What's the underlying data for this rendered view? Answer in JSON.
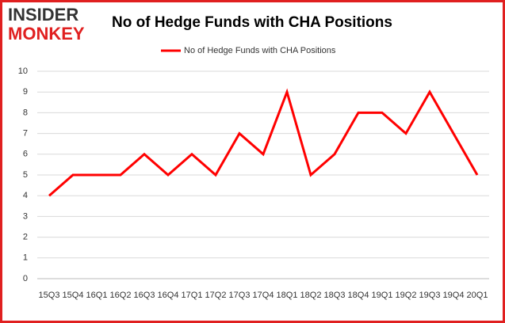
{
  "logo": {
    "line1": "INSIDER",
    "line2": "MONKEY"
  },
  "chart_data": {
    "type": "line",
    "title": "No of Hedge Funds with CHA Positions",
    "categories": [
      "15Q3",
      "15Q4",
      "16Q1",
      "16Q2",
      "16Q3",
      "16Q4",
      "17Q1",
      "17Q2",
      "17Q3",
      "17Q4",
      "18Q1",
      "18Q2",
      "18Q3",
      "18Q4",
      "19Q1",
      "19Q2",
      "19Q3",
      "19Q4",
      "20Q1"
    ],
    "series": [
      {
        "name": "No of Hedge Funds with CHA Positions",
        "color": "#ff0000",
        "values": [
          4,
          5,
          5,
          5,
          6,
          5,
          6,
          5,
          7,
          6,
          9,
          5,
          6,
          8,
          8,
          7,
          9,
          7,
          5
        ]
      }
    ],
    "ylim": [
      0,
      10
    ],
    "yticks": [
      0,
      1,
      2,
      3,
      4,
      5,
      6,
      7,
      8,
      9,
      10
    ],
    "grid": true,
    "legend": "top"
  }
}
